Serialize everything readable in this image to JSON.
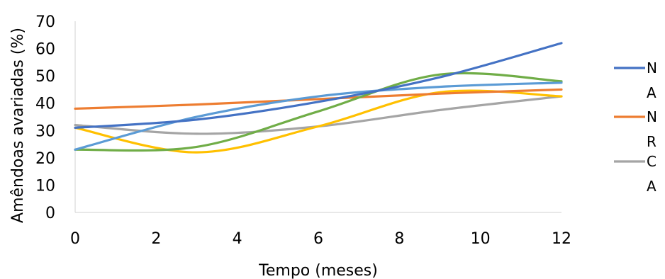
{
  "chart_data": {
    "type": "line",
    "title": "",
    "xlabel": "Tempo (meses)",
    "ylabel": "Amêndoas avariadas (%)",
    "xlim": [
      0,
      12
    ],
    "ylim": [
      0,
      70
    ],
    "x_ticks": [
      0,
      2,
      4,
      6,
      8,
      10,
      12
    ],
    "y_ticks": [
      0,
      10,
      20,
      30,
      40,
      50,
      60,
      70
    ],
    "grid": false,
    "legend_position": "right",
    "x": [
      0,
      3,
      6,
      9,
      12
    ],
    "series": [
      {
        "name": "NA",
        "legend_label": "N\nA",
        "color": "#4472C4",
        "values": [
          31,
          34,
          40.5,
          49.5,
          62
        ]
      },
      {
        "name": "NR",
        "legend_label": "N\nR",
        "color": "#ED7D31",
        "values": [
          38,
          39.5,
          41.5,
          43.5,
          45
        ]
      },
      {
        "name": "CA",
        "legend_label": "C\nA",
        "color": "#A5A5A5",
        "values": [
          32,
          28.8,
          31.5,
          37.5,
          42.5
        ]
      },
      {
        "name": "",
        "legend_label": "",
        "color": "#FFC000",
        "values": [
          31,
          22,
          31.5,
          44,
          42.5
        ]
      },
      {
        "name": "",
        "legend_label": "",
        "color": "#5B9BD5",
        "values": [
          23,
          35,
          42.5,
          46,
          47.5
        ]
      },
      {
        "name": "",
        "legend_label": "",
        "color": "#70AD47",
        "values": [
          23,
          24,
          37,
          50.5,
          48
        ]
      }
    ]
  }
}
